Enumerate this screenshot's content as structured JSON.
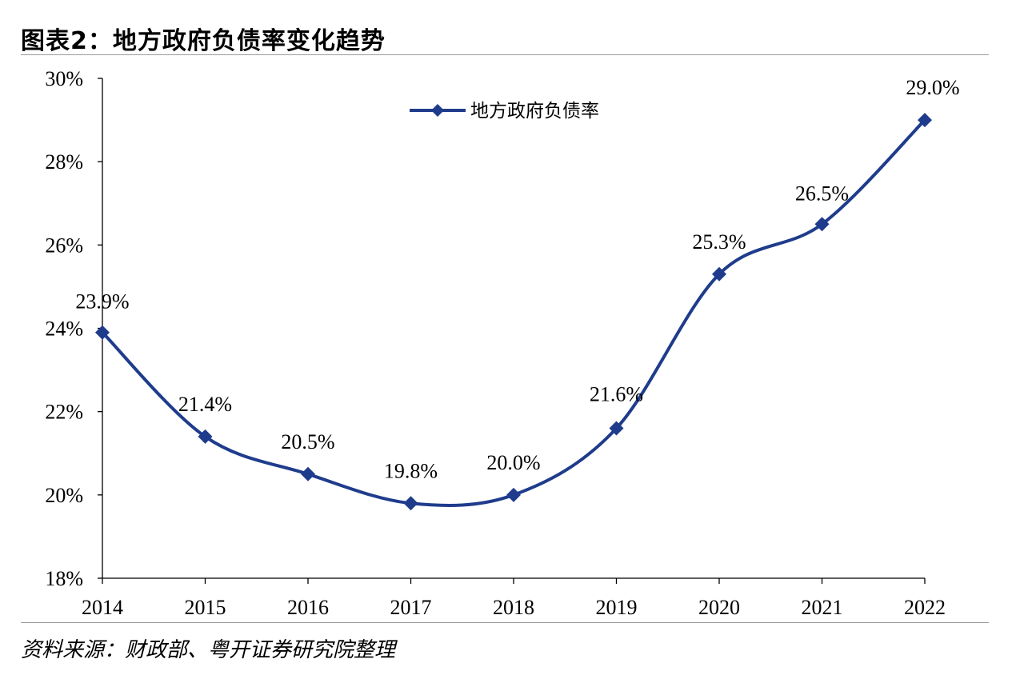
{
  "figure": {
    "title": "图表2：地方政府负债率变化趋势",
    "source": "资料来源：财政部、粤开证券研究院整理"
  },
  "chart_data": {
    "type": "line",
    "title": "",
    "xlabel": "",
    "ylabel": "",
    "categories": [
      "2014",
      "2015",
      "2016",
      "2017",
      "2018",
      "2019",
      "2020",
      "2021",
      "2022"
    ],
    "series": [
      {
        "name": "地方政府负债率",
        "values": [
          23.9,
          21.4,
          20.5,
          19.8,
          20.0,
          21.6,
          25.3,
          26.5,
          29.0
        ],
        "labels": [
          "23.9%",
          "21.4%",
          "20.5%",
          "19.8%",
          "20.0%",
          "21.6%",
          "25.3%",
          "26.5%",
          "29.0%"
        ],
        "color": "#1f3c8c",
        "marker": "diamond",
        "smooth": true
      }
    ],
    "ylim": [
      18,
      30
    ],
    "yticks": [
      18,
      20,
      22,
      24,
      26,
      28,
      30
    ],
    "ytick_labels": [
      "18%",
      "20%",
      "22%",
      "24%",
      "26%",
      "28%",
      "30%"
    ],
    "grid": false,
    "legend": "top-center"
  }
}
